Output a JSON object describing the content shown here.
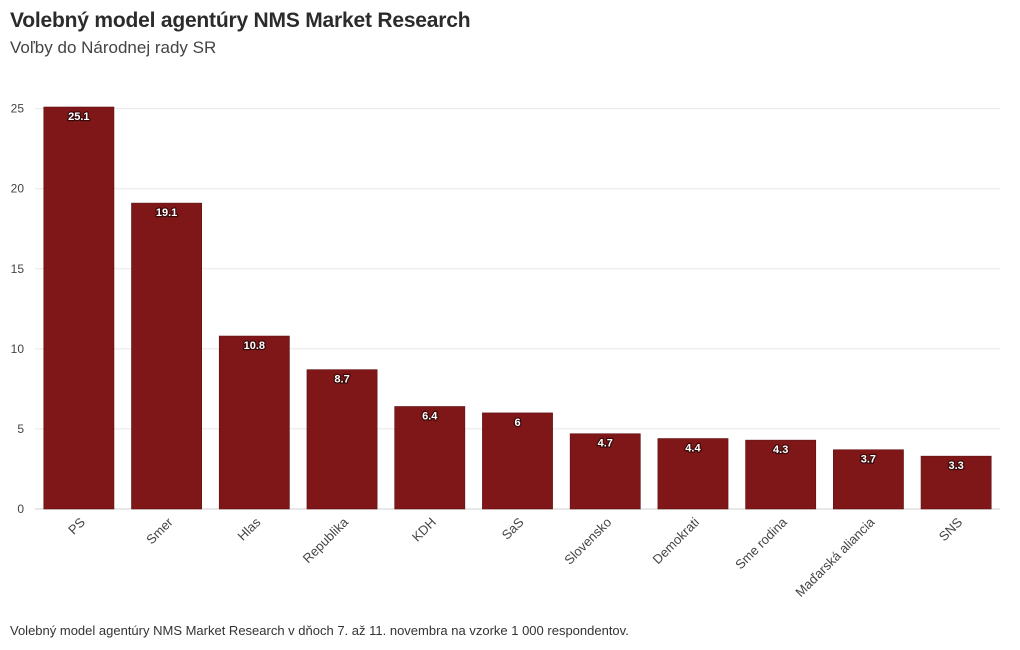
{
  "title": "Volebný model agentúry NMS Market Research",
  "subtitle": "Voľby do Národnej rady SR",
  "footer": "Volebný model agentúry NMS Market Research v dňoch 7. až 11. novembra na vzorke 1 000 respondentov.",
  "chart_data": {
    "type": "bar",
    "categories": [
      "PS",
      "Smer",
      "Hlas",
      "Republika",
      "KDH",
      "SaS",
      "Slovensko",
      "Demokrati",
      "Sme rodina",
      "Maďarská aliancia",
      "SNS"
    ],
    "values": [
      25.1,
      19.1,
      10.8,
      8.7,
      6.4,
      6,
      4.7,
      4.4,
      4.3,
      3.7,
      3.3
    ],
    "data_labels": [
      "25.1",
      "19.1",
      "10.8",
      "8.7",
      "6.4",
      "6",
      "4.7",
      "4.4",
      "4.3",
      "3.7",
      "3.3"
    ],
    "yticks": [
      0,
      5,
      10,
      15,
      20,
      25
    ],
    "ylim": [
      0,
      25.6
    ],
    "grid": true,
    "legend": "none",
    "bar_color": "#7f1719",
    "grid_color": "#e8e8e8"
  }
}
